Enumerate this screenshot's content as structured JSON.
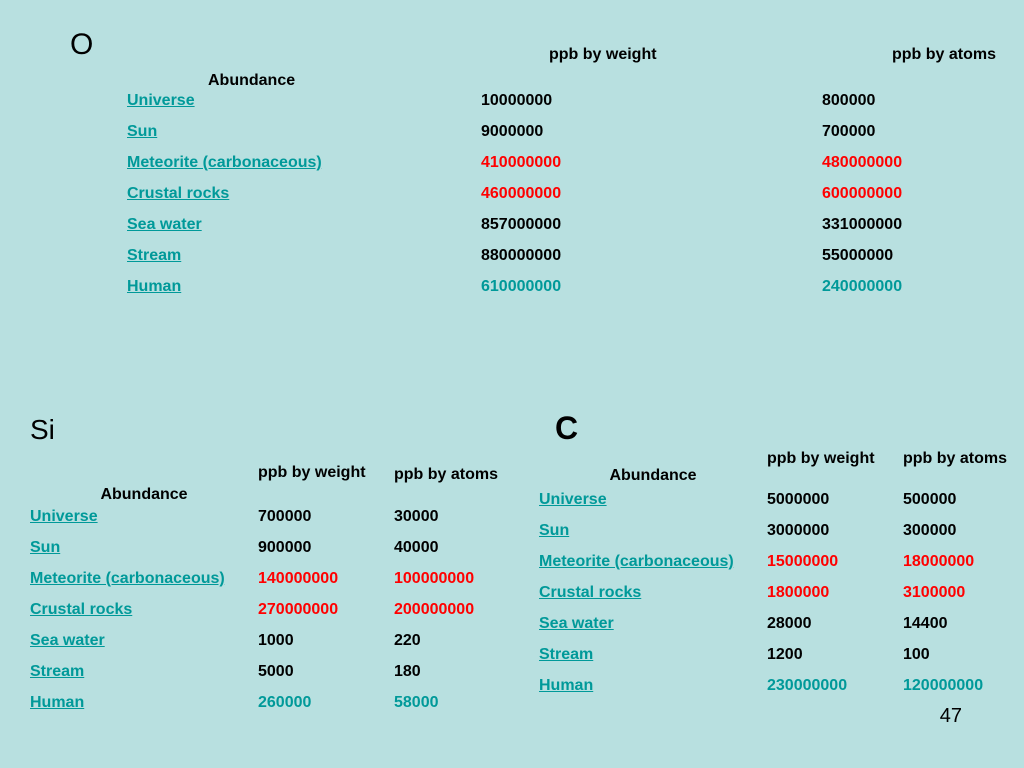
{
  "colors": {
    "background": "#b8e0e0",
    "link": "#009999",
    "highlight_red": "#ff0000",
    "highlight_teal": "#009999"
  },
  "tables": {
    "O": {
      "title": "O",
      "headers": {
        "name": "Abundance",
        "weight": "ppb by weight",
        "atoms": "ppb by atoms"
      },
      "rows": [
        {
          "name": "Universe",
          "weight": "10000000",
          "atoms": "800000",
          "color": "black"
        },
        {
          "name": "Sun",
          "weight": "9000000",
          "atoms": "700000",
          "color": "black"
        },
        {
          "name": "Meteorite (carbonaceous)",
          "weight": "410000000",
          "atoms": "480000000",
          "color": "red"
        },
        {
          "name": "Crustal rocks",
          "weight": "460000000",
          "atoms": "600000000",
          "color": "red"
        },
        {
          "name": "Sea water",
          "weight": "857000000",
          "atoms": "331000000",
          "color": "black"
        },
        {
          "name": "Stream",
          "weight": "880000000",
          "atoms": "55000000",
          "color": "black"
        },
        {
          "name": "Human",
          "weight": "610000000",
          "atoms": "240000000",
          "color": "teal"
        }
      ]
    },
    "Si": {
      "title": "Si",
      "headers": {
        "name": "Abundance",
        "weight": "ppb by weight",
        "atoms": "ppb by atoms"
      },
      "rows": [
        {
          "name": "Universe",
          "weight": "700000",
          "atoms": "30000",
          "color": "black"
        },
        {
          "name": "Sun",
          "weight": "900000",
          "atoms": "40000",
          "color": "black"
        },
        {
          "name": "Meteorite (carbonaceous)",
          "weight": "140000000",
          "atoms": "100000000",
          "color": "red"
        },
        {
          "name": "Crustal rocks",
          "weight": "270000000",
          "atoms": "200000000",
          "color": "red"
        },
        {
          "name": "Sea water",
          "weight": "1000",
          "atoms": "220",
          "color": "black"
        },
        {
          "name": "Stream",
          "weight": "5000",
          "atoms": "180",
          "color": "black"
        },
        {
          "name": "Human",
          "weight": "260000",
          "atoms": "58000",
          "color": "teal"
        }
      ]
    },
    "C": {
      "title": "C",
      "headers": {
        "name": "Abundance",
        "weight": "ppb by weight",
        "atoms": "ppb by atoms"
      },
      "rows": [
        {
          "name": "Universe",
          "weight": "5000000",
          "atoms": "500000",
          "color": "black"
        },
        {
          "name": "Sun",
          "weight": "3000000",
          "atoms": "300000",
          "color": "black"
        },
        {
          "name": "Meteorite (carbonaceous)",
          "weight": "15000000",
          "atoms": "18000000",
          "color": "red"
        },
        {
          "name": "Crustal rocks",
          "weight": "1800000",
          "atoms": "3100000",
          "color": "red"
        },
        {
          "name": "Sea water",
          "weight": "28000",
          "atoms": "14400",
          "color": "black"
        },
        {
          "name": "Stream",
          "weight": "1200",
          "atoms": "100",
          "color": "black"
        },
        {
          "name": "Human",
          "weight": "230000000",
          "atoms": "120000000",
          "color": "teal"
        }
      ]
    }
  },
  "slide_number": "47"
}
